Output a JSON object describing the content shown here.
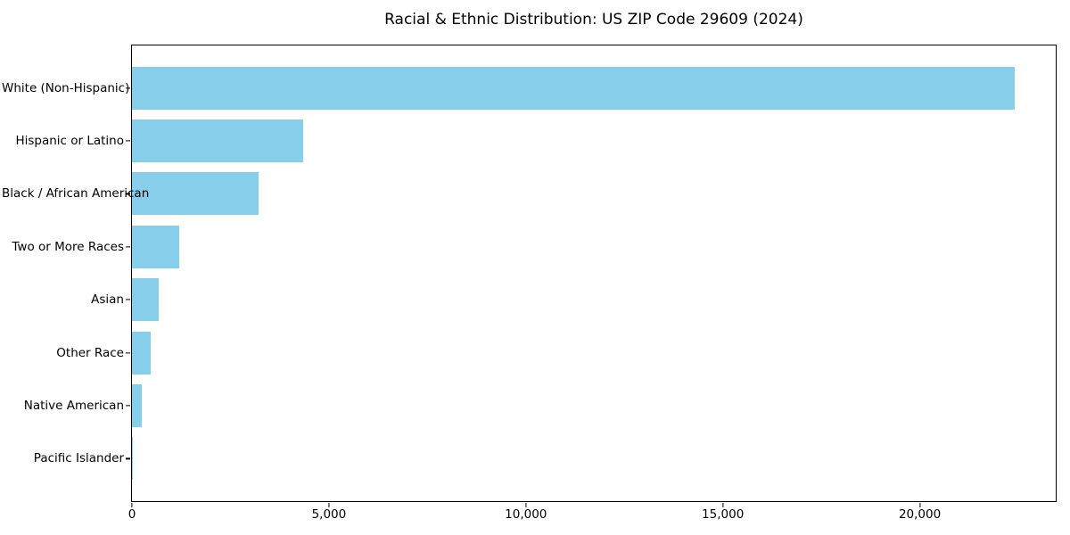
{
  "chart_data": {
    "type": "bar",
    "orientation": "horizontal",
    "title": "Racial & Ethnic Distribution: US ZIP Code 29609 (2024)",
    "categories": [
      "White (Non-Hispanic)",
      "Hispanic or Latino",
      "Black / African American",
      "Two or More Races",
      "Asian",
      "Other Race",
      "Native American",
      "Pacific Islander"
    ],
    "values": [
      22400,
      4340,
      3210,
      1200,
      680,
      470,
      250,
      20
    ],
    "bar_color": "#87CEEB",
    "xlabel": "",
    "ylabel": "",
    "xlim": [
      0,
      23450
    ],
    "xticks": [
      0,
      5000,
      10000,
      15000,
      20000
    ],
    "xtick_labels": [
      "0",
      "5,000",
      "10,000",
      "15,000",
      "20,000"
    ],
    "grid": false,
    "legend": null,
    "background_color": "#ffffff",
    "text_color": "#000000"
  }
}
